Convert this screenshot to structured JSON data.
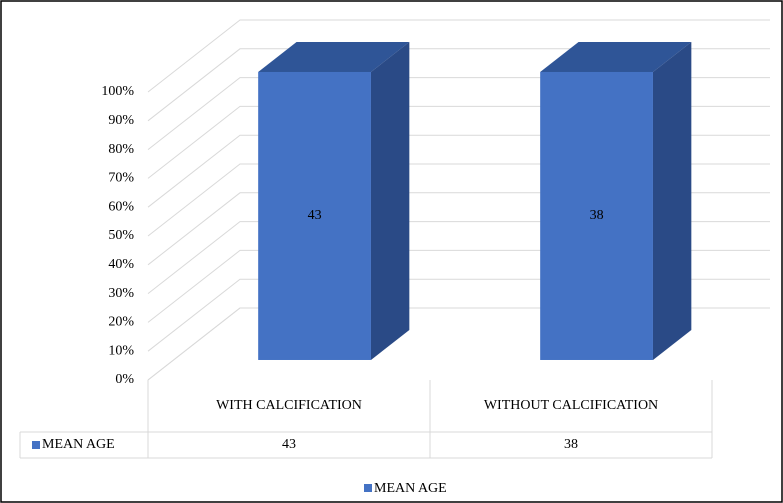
{
  "chart_data": {
    "type": "bar3d",
    "stacked_percent": true,
    "categories": [
      "WITH CALCIFICATION",
      "WITHOUT CALCIFICATION"
    ],
    "series": [
      {
        "name": "MEAN AGE",
        "color": "#4472c4",
        "values": [
          43,
          38
        ]
      }
    ],
    "ylim": [
      0,
      100
    ],
    "yticks": [
      {
        "value": 0,
        "label": "0%"
      },
      {
        "value": 10,
        "label": "10%"
      },
      {
        "value": 20,
        "label": "20%"
      },
      {
        "value": 30,
        "label": "30%"
      },
      {
        "value": 40,
        "label": "40%"
      },
      {
        "value": 50,
        "label": "50%"
      },
      {
        "value": 60,
        "label": "60%"
      },
      {
        "value": 70,
        "label": "70%"
      },
      {
        "value": 80,
        "label": "80%"
      },
      {
        "value": 90,
        "label": "90%"
      },
      {
        "value": 100,
        "label": "100%"
      }
    ],
    "grid": true,
    "data_table": true,
    "legend": "bottom"
  }
}
